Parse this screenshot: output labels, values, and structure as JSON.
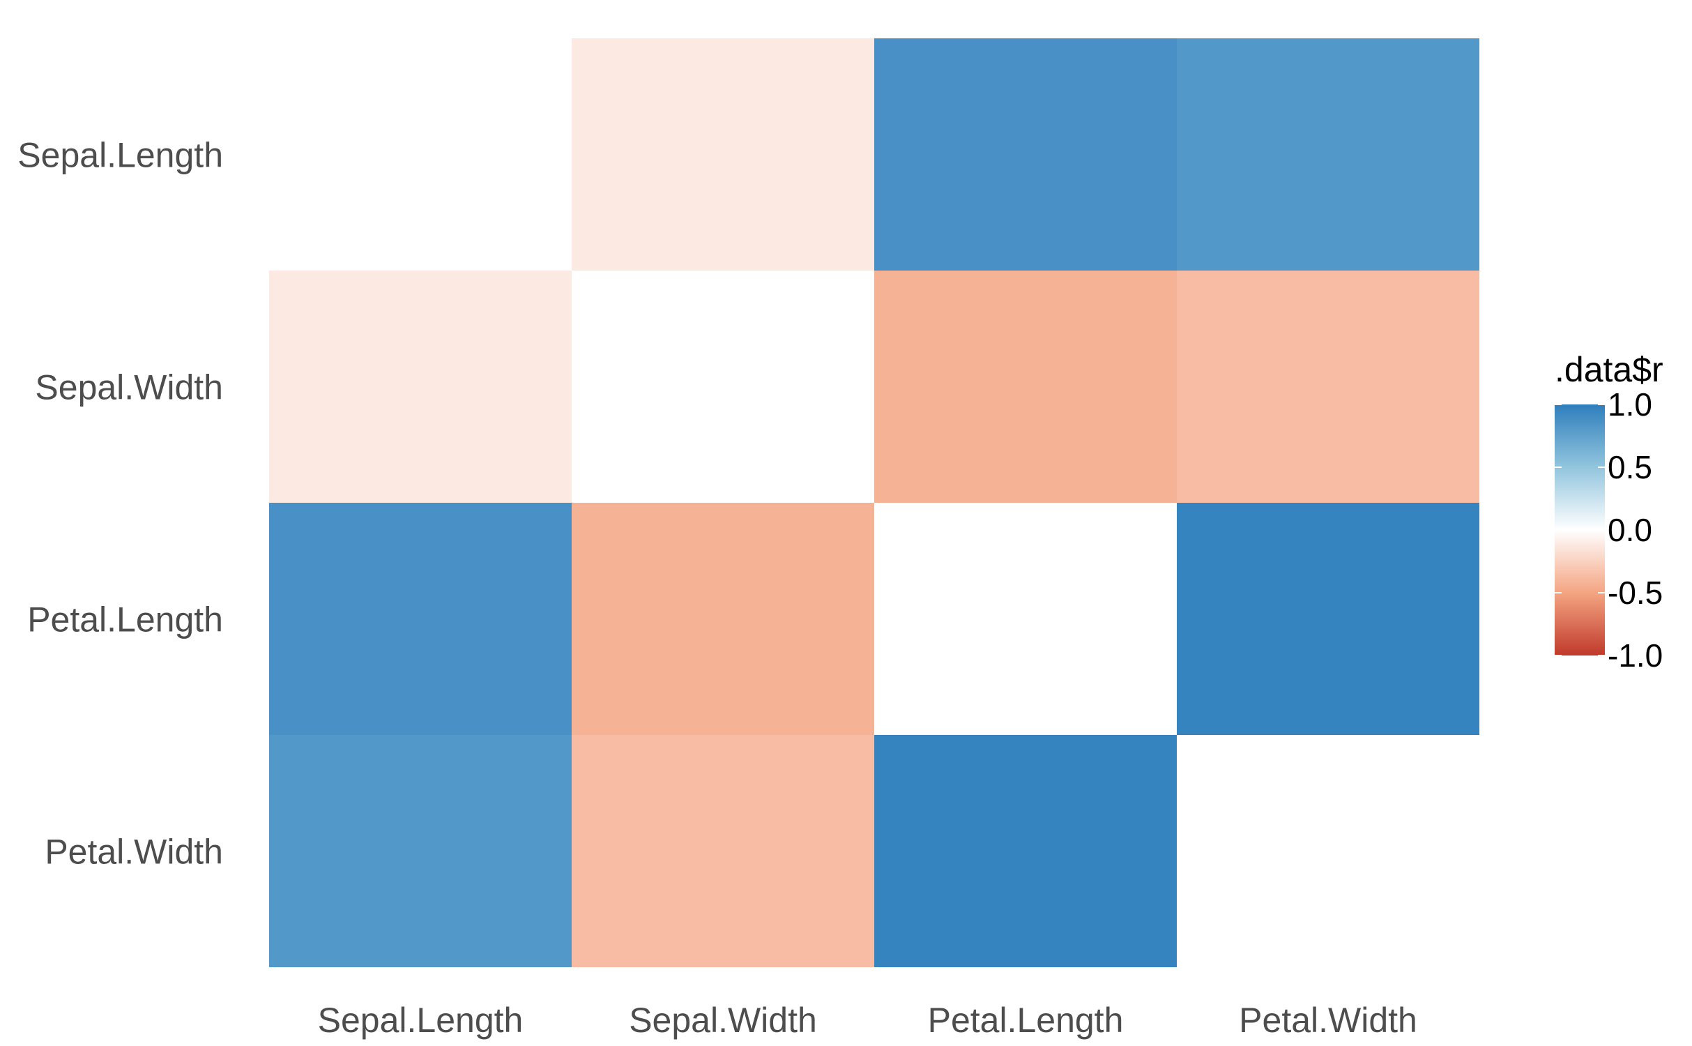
{
  "chart_data": {
    "type": "heatmap",
    "title": "",
    "xlabel": "",
    "ylabel": "",
    "x_categories": [
      "Sepal.Length",
      "Sepal.Width",
      "Petal.Length",
      "Petal.Width"
    ],
    "y_categories": [
      "Sepal.Length",
      "Sepal.Width",
      "Petal.Length",
      "Petal.Width"
    ],
    "values": [
      [
        0.0,
        -0.12,
        0.87,
        0.82
      ],
      [
        -0.12,
        0.0,
        -0.43,
        -0.37
      ],
      [
        0.87,
        -0.43,
        0.0,
        0.96
      ],
      [
        0.82,
        -0.37,
        0.96,
        0.0
      ]
    ],
    "legend": {
      "title": ".data$r",
      "placement": "right",
      "range": [
        -1.0,
        1.0
      ],
      "ticks": [
        "1.0",
        "0.5",
        "0.0",
        "-0.5",
        "-1.0"
      ],
      "tick_values": [
        1.0,
        0.5,
        0.0,
        -0.5,
        -1.0
      ]
    },
    "colors": {
      "negative": "#c0392b",
      "mid_negative": "#f4a582",
      "zero": "#ffffff",
      "mid_positive": "#92c5de",
      "positive": "#2e7ebc"
    },
    "grid": false
  }
}
